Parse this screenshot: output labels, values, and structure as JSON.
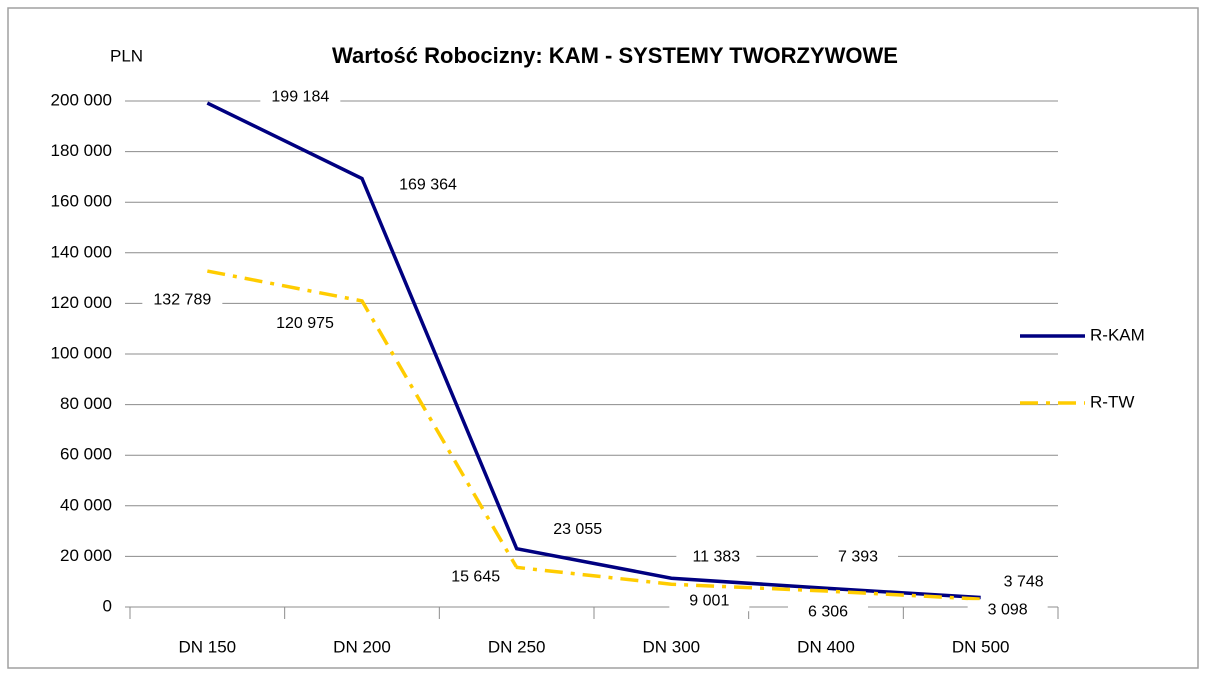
{
  "chart_data": {
    "type": "line",
    "title": "Wartość Robocizny: KAM - SYSTEMY TWORZYWOWE",
    "y_label": "PLN",
    "categories": [
      "DN 150",
      "DN 200",
      "DN 250",
      "DN 300",
      "DN 400",
      "DN 500"
    ],
    "series": [
      {
        "name": "R-KAM",
        "color": "#000080",
        "style": "solid",
        "values": [
          199184,
          169364,
          23055,
          11383,
          7393,
          3748
        ],
        "value_labels": [
          "199 184",
          "169 364",
          "23 055",
          "11 383",
          "7 393",
          "3 748"
        ]
      },
      {
        "name": "R-TW",
        "color": "#ffcc00",
        "style": "dashdot",
        "values": [
          132789,
          120975,
          15645,
          9001,
          6306,
          3098
        ],
        "value_labels": [
          "132 789",
          "120 975",
          "15 645",
          "9 001",
          "6 306",
          "3 098"
        ]
      }
    ],
    "ylim": [
      0,
      200000
    ],
    "yticks": [
      0,
      {
        "value": 20000,
        "label": "20 000"
      },
      {
        "value": 40000,
        "label": "40 000"
      },
      {
        "value": 60000,
        "label": "60 000"
      },
      {
        "value": 80000,
        "label": "80 000"
      },
      {
        "value": 100000,
        "label": "100 000"
      },
      {
        "value": 120000,
        "label": "120 000"
      },
      {
        "value": 140000,
        "label": "140 000"
      },
      {
        "value": 160000,
        "label": "160 000"
      },
      {
        "value": 180000,
        "label": "180 000"
      },
      {
        "value": 200000,
        "label": "200 000"
      }
    ],
    "grid": true,
    "legend": "right"
  }
}
